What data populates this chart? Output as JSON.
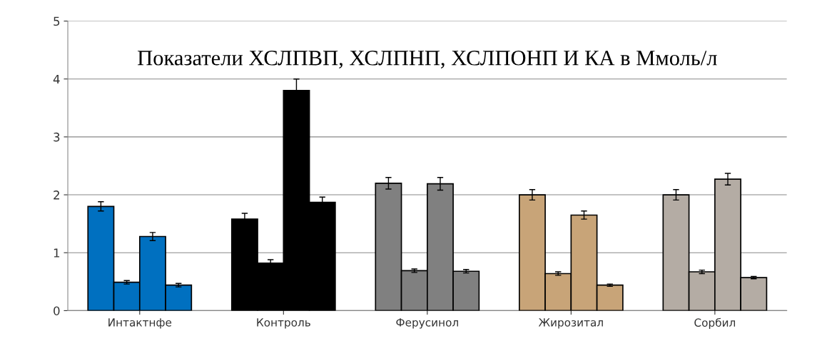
{
  "chart_data": {
    "type": "bar",
    "title": "Показатели ХСЛПВП, ХСЛПНП, ХСЛПОНП И КА в Ммоль/л",
    "categories": [
      "Интактнфе",
      "Контроль",
      "Ферусинол",
      "Жирозитал",
      "Сорбил"
    ],
    "series": [
      {
        "colors": [
          "#0070c0",
          "#000000",
          "#808080",
          "#c8a478",
          "#b4aca4"
        ],
        "values": [
          1.8,
          1.58,
          2.2,
          2.0,
          2.0
        ],
        "errors": [
          0.08,
          0.1,
          0.1,
          0.09,
          0.09
        ]
      },
      {
        "colors": [
          "#0070c0",
          "#000000",
          "#808080",
          "#c8a478",
          "#b4aca4"
        ],
        "values": [
          0.49,
          0.82,
          0.69,
          0.64,
          0.67
        ],
        "errors": [
          0.03,
          0.06,
          0.03,
          0.03,
          0.03
        ]
      },
      {
        "colors": [
          "#0070c0",
          "#000000",
          "#808080",
          "#c8a478",
          "#b4aca4"
        ],
        "values": [
          1.28,
          3.8,
          2.19,
          1.65,
          2.27
        ],
        "errors": [
          0.07,
          0.2,
          0.11,
          0.07,
          0.1
        ]
      },
      {
        "colors": [
          "#0070c0",
          "#000000",
          "#808080",
          "#c8a478",
          "#b4aca4"
        ],
        "values": [
          0.44,
          1.87,
          0.68,
          0.44,
          0.57
        ],
        "errors": [
          0.03,
          0.09,
          0.03,
          0.02,
          0.02
        ]
      }
    ],
    "ylim": [
      0,
      5
    ],
    "yticks": [
      0,
      1,
      2,
      3,
      4,
      5
    ],
    "grid": "y"
  }
}
